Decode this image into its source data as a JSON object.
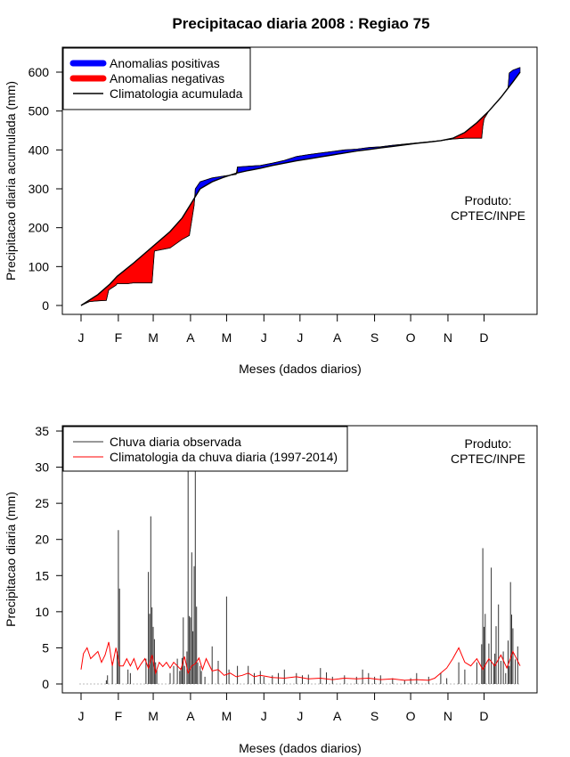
{
  "colors": {
    "positive": "#0000ff",
    "negative": "#ff0000",
    "climatology_line": "#000000",
    "daily_rain": "#333333",
    "climatology_rain": "#ff0000"
  },
  "chart_data": [
    {
      "type": "area",
      "title": "Precipitacao diaria 2008 : Regiao 75",
      "xlabel": "Meses (dados diarios)",
      "ylabel": "Precipitacao diaria acumulada (mm)",
      "xlim": [
        1,
        366
      ],
      "ylim": [
        0,
        650
      ],
      "yticks": [
        0,
        100,
        200,
        300,
        400,
        500,
        600
      ],
      "month_labels": [
        "J",
        "F",
        "M",
        "A",
        "M",
        "J",
        "J",
        "A",
        "S",
        "O",
        "N",
        "D"
      ],
      "month_days": [
        1,
        32,
        61,
        92,
        122,
        153,
        183,
        214,
        245,
        275,
        306,
        336
      ],
      "legend": [
        "Anomalias positivas",
        "Anomalias negativas",
        "Climatologia acumulada"
      ],
      "legend_position": "top-left",
      "credit": [
        "Produto:",
        "CPTEC/INPE"
      ],
      "series": [
        {
          "name": "Climatologia acumulada",
          "x": [
            1,
            15,
            25,
            31,
            45,
            60,
            75,
            85,
            91,
            95,
            100,
            110,
            120,
            130,
            140,
            150,
            160,
            170,
            180,
            190,
            200,
            210,
            220,
            230,
            240,
            250,
            260,
            270,
            280,
            290,
            300,
            310,
            320,
            330,
            340,
            350,
            360,
            366
          ],
          "values": [
            0,
            28,
            55,
            75,
            110,
            150,
            190,
            225,
            255,
            275,
            300,
            318,
            330,
            340,
            347,
            353,
            360,
            366,
            372,
            377,
            382,
            387,
            392,
            397,
            401,
            405,
            409,
            413,
            417,
            420,
            424,
            430,
            445,
            470,
            500,
            535,
            575,
            600
          ]
        },
        {
          "name": "Observada acumulada",
          "x": [
            1,
            8,
            15,
            22,
            24,
            30,
            31,
            40,
            44,
            60,
            62,
            70,
            75,
            85,
            91,
            95,
            96,
            100,
            110,
            120,
            130,
            131,
            140,
            150,
            160,
            170,
            180,
            190,
            200,
            210,
            220,
            230,
            240,
            250,
            260,
            270,
            280,
            290,
            300,
            310,
            320,
            325,
            330,
            334,
            335,
            336,
            340,
            350,
            356,
            357,
            360,
            366
          ],
          "values": [
            0,
            10,
            12,
            13,
            40,
            52,
            56,
            56,
            58,
            58,
            140,
            145,
            148,
            170,
            180,
            258,
            300,
            318,
            328,
            333,
            337,
            356,
            358,
            360,
            366,
            373,
            383,
            388,
            392,
            396,
            400,
            402,
            406,
            408,
            412,
            415,
            418,
            421,
            424,
            428,
            430,
            430,
            430,
            430,
            460,
            480,
            500,
            535,
            560,
            598,
            605,
            612
          ]
        }
      ]
    },
    {
      "type": "bar",
      "xlabel": "Meses (dados diarios)",
      "ylabel": "Precipitacao diaria (mm)",
      "xlim": [
        1,
        366
      ],
      "ylim": [
        0,
        35
      ],
      "yticks": [
        0,
        5,
        10,
        15,
        20,
        25,
        30,
        35
      ],
      "month_labels": [
        "J",
        "F",
        "M",
        "A",
        "M",
        "J",
        "J",
        "A",
        "S",
        "O",
        "N",
        "D"
      ],
      "month_days": [
        1,
        32,
        61,
        92,
        122,
        153,
        183,
        214,
        245,
        275,
        306,
        336
      ],
      "legend": [
        "Chuva diaria observada",
        "Climatologia da chuva diaria (1997-2014)"
      ],
      "legend_position": "top-left",
      "credit": [
        "Produto:",
        "CPTEC/INPE"
      ],
      "series": [
        {
          "name": "Chuva diaria observada",
          "days": [
            22,
            23,
            27,
            31,
            32,
            33,
            40,
            42,
            55,
            57,
            58,
            59,
            60,
            61,
            62,
            63,
            64,
            75,
            78,
            81,
            83,
            84,
            85,
            86,
            87,
            89,
            90,
            91,
            92,
            93,
            94,
            95,
            96,
            97,
            98,
            100,
            101,
            104,
            110,
            115,
            122,
            124,
            131,
            140,
            145,
            150,
            153,
            160,
            165,
            170,
            180,
            185,
            190,
            200,
            205,
            210,
            220,
            230,
            235,
            240,
            245,
            250,
            260,
            270,
            275,
            280,
            290,
            300,
            305,
            315,
            320,
            330,
            334,
            335,
            336,
            337,
            340,
            342,
            344,
            345,
            346,
            348,
            350,
            352,
            354,
            356,
            357,
            358,
            359,
            360,
            362,
            364
          ],
          "values": [
            0.5,
            1.2,
            3.0,
            4.5,
            21.3,
            13.2,
            2.0,
            1.5,
            3.5,
            15.5,
            9.7,
            23.2,
            10.6,
            7.9,
            6.2,
            3.0,
            2.0,
            1.5,
            2.5,
            3.5,
            1.8,
            2.2,
            3.6,
            9.2,
            2.5,
            4.5,
            33.0,
            9.4,
            9.2,
            18.2,
            7.3,
            16.3,
            35.0,
            10.7,
            3.0,
            2.5,
            1.8,
            1.0,
            5.2,
            3.2,
            12.1,
            2.0,
            2.5,
            2.5,
            1.5,
            1.8,
            1.0,
            1.2,
            1.5,
            2.0,
            1.5,
            1.2,
            1.3,
            2.2,
            1.6,
            1.0,
            1.2,
            1.0,
            2.0,
            1.5,
            1.0,
            1.2,
            0.8,
            0.5,
            0.8,
            1.5,
            1.0,
            1.5,
            0.8,
            3.0,
            2.0,
            3.0,
            5.5,
            18.8,
            7.9,
            9.7,
            5.6,
            16.1,
            2.8,
            4.2,
            8.0,
            11.0,
            3.2,
            4.5,
            1.5,
            6.0,
            2.5,
            14.1,
            9.6,
            7.7,
            3.4,
            5.2
          ]
        },
        {
          "name": "Climatologia da chuva diaria (1997-2014)",
          "x": [
            1,
            3,
            6,
            9,
            12,
            15,
            18,
            21,
            24,
            27,
            30,
            33,
            36,
            39,
            42,
            45,
            48,
            51,
            54,
            57,
            60,
            63,
            66,
            69,
            72,
            75,
            78,
            81,
            84,
            87,
            90,
            93,
            96,
            99,
            102,
            105,
            110,
            115,
            120,
            125,
            130,
            135,
            140,
            145,
            150,
            160,
            170,
            180,
            190,
            200,
            210,
            220,
            230,
            240,
            250,
            260,
            270,
            280,
            290,
            295,
            300,
            305,
            310,
            315,
            320,
            325,
            330,
            335,
            340,
            345,
            350,
            355,
            360,
            366
          ],
          "values": [
            2.0,
            4.2,
            5.0,
            3.5,
            4.0,
            4.5,
            3.0,
            4.0,
            5.8,
            2.5,
            5.0,
            2.5,
            2.5,
            3.5,
            2.5,
            3.5,
            2.0,
            2.8,
            3.5,
            2.2,
            4.0,
            1.5,
            3.0,
            2.4,
            3.0,
            2.2,
            3.0,
            2.5,
            2.0,
            3.8,
            1.5,
            2.5,
            2.8,
            3.6,
            2.0,
            3.5,
            1.8,
            2.0,
            1.2,
            1.5,
            1.0,
            1.2,
            1.5,
            1.0,
            1.2,
            0.9,
            0.8,
            1.0,
            0.7,
            0.8,
            0.6,
            0.8,
            0.7,
            0.8,
            0.6,
            0.7,
            0.5,
            0.6,
            0.5,
            0.8,
            1.5,
            2.2,
            3.5,
            5.0,
            3.0,
            2.5,
            3.5,
            2.0,
            3.5,
            2.5,
            4.0,
            2.2,
            4.5,
            2.5
          ]
        }
      ]
    }
  ]
}
